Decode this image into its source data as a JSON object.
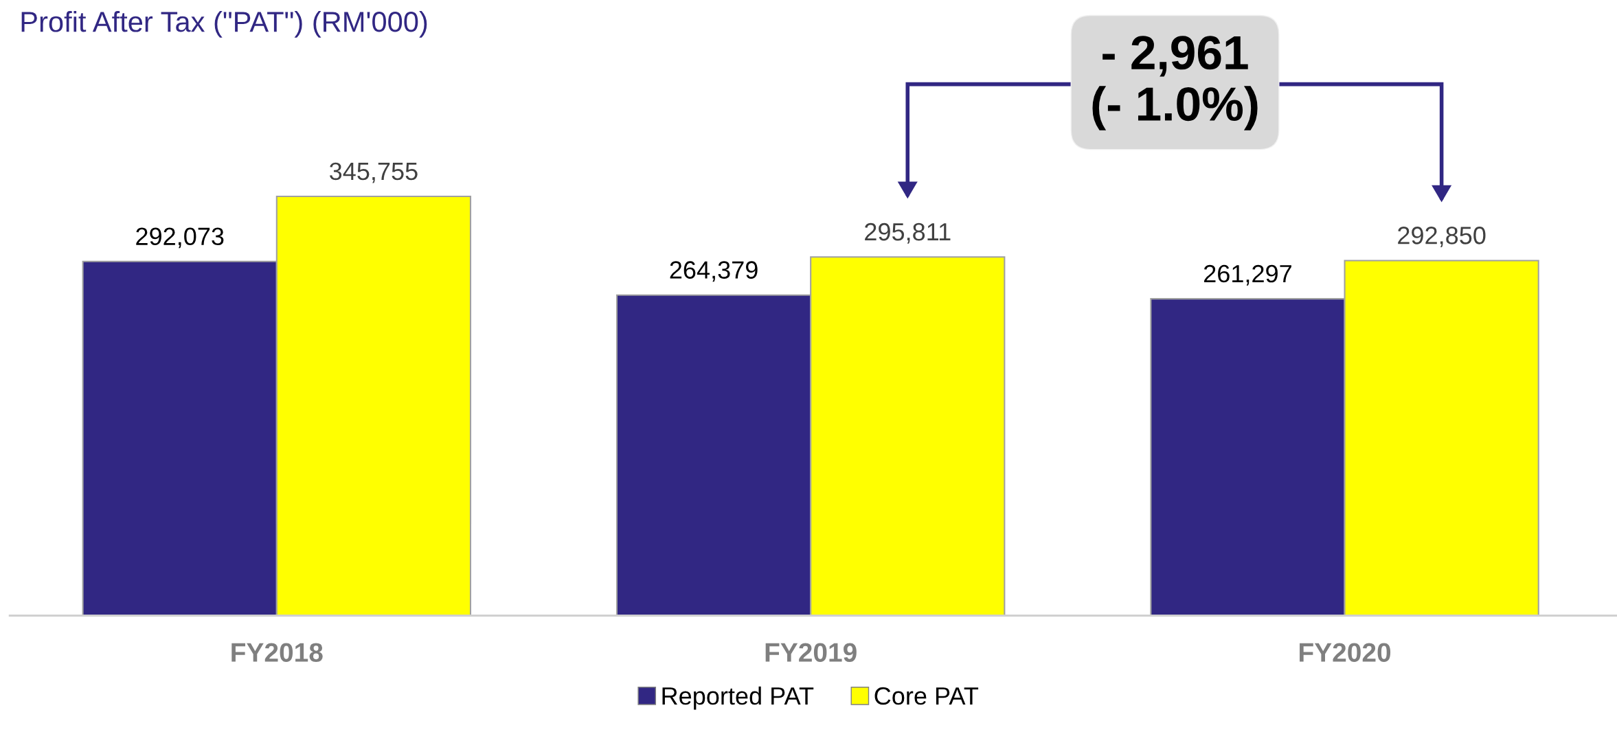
{
  "chart_data": {
    "type": "bar",
    "title": "Profit After Tax (\"PAT\") (RM'000)",
    "categories": [
      "FY2018",
      "FY2019",
      "FY2020"
    ],
    "series": [
      {
        "name": "Reported PAT",
        "color": "#312783",
        "values": [
          292073,
          264379,
          261297
        ],
        "value_labels": [
          "292,073",
          "264,379",
          "261,297"
        ]
      },
      {
        "name": "Core PAT",
        "color": "#ffff00",
        "values": [
          345755,
          295811,
          292850
        ],
        "value_labels": [
          "345,755",
          "295,811",
          "292,850"
        ]
      }
    ],
    "legend": "bottom",
    "grid": false,
    "tick_labels": "x",
    "annotations": [
      "- 2,961\n(- 1.0%)"
    ]
  }
}
